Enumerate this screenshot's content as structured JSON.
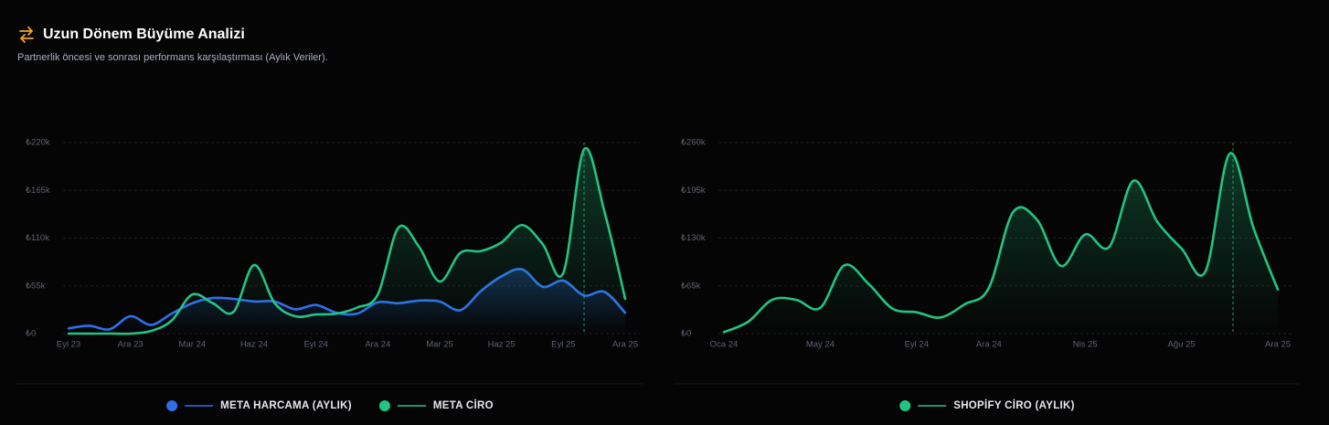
{
  "header": {
    "title": "Uzun Dönem Büyüme Analizi",
    "subtitle": "Partnerlik öncesi ve sonrası performans karşılaştırması (Aylık Veriler)."
  },
  "chart_data": [
    {
      "type": "area",
      "categories": [
        "Eyl 23",
        null,
        null,
        "Ara 23",
        null,
        null,
        "Mar 24",
        null,
        null,
        "Haz 24",
        null,
        null,
        "Eyl 24",
        null,
        null,
        "Ara 24",
        null,
        null,
        "Mar 25",
        null,
        null,
        "Haz 25",
        null,
        null,
        "Eyl 25",
        null,
        null,
        "Ara 25"
      ],
      "series": [
        {
          "name": "META HARCAMA (AYLIK)",
          "color": "#2f6fe8",
          "values": [
            6000,
            9000,
            5000,
            20000,
            10000,
            23000,
            35000,
            41000,
            40000,
            37000,
            37000,
            28000,
            33000,
            24000,
            23000,
            36000,
            35000,
            38000,
            37000,
            27000,
            49000,
            66000,
            74000,
            54000,
            61000,
            44000,
            48000,
            24000
          ]
        },
        {
          "name": "META CİRO",
          "color": "#22c483",
          "values": [
            0,
            0,
            0,
            0,
            3000,
            15000,
            45000,
            35000,
            25000,
            79000,
            35000,
            20000,
            22000,
            23000,
            30000,
            45000,
            122000,
            100000,
            60000,
            93000,
            95000,
            105000,
            125000,
            103000,
            70000,
            212000,
            140000,
            40000
          ]
        }
      ],
      "ylim": [
        0,
        220000
      ],
      "yticks": [
        {
          "value": 0,
          "label": "₺0"
        },
        {
          "value": 55000,
          "label": "₺55k"
        },
        {
          "value": 110000,
          "label": "₺110k"
        },
        {
          "value": 165000,
          "label": "₺165k"
        },
        {
          "value": 220000,
          "label": "₺220k"
        }
      ],
      "grid": true,
      "legend": "bottom"
    },
    {
      "type": "area",
      "categories": [
        "Oca 24",
        null,
        null,
        null,
        "May 24",
        null,
        null,
        null,
        "Eyl 24",
        null,
        null,
        "Ara 24",
        null,
        null,
        null,
        "Nis 25",
        null,
        null,
        null,
        "Ağu 25",
        null,
        null,
        null,
        "Ara 25"
      ],
      "series": [
        {
          "name": "SHOPİFY CİRO (AYLIK)",
          "color": "#22c483",
          "values": [
            2000,
            16000,
            46000,
            46000,
            35000,
            93000,
            68000,
            34000,
            29000,
            22000,
            40000,
            62000,
            165000,
            155000,
            92000,
            135000,
            118000,
            208000,
            152000,
            116000,
            85000,
            245000,
            143000,
            60000
          ]
        }
      ],
      "ylim": [
        0,
        260000
      ],
      "yticks": [
        {
          "value": 0,
          "label": "₺0"
        },
        {
          "value": 65000,
          "label": "₺65k"
        },
        {
          "value": 130000,
          "label": "₺130k"
        },
        {
          "value": 195000,
          "label": "₺195k"
        },
        {
          "value": 260000,
          "label": "₺260k"
        }
      ],
      "grid": true,
      "legend": "bottom"
    }
  ]
}
